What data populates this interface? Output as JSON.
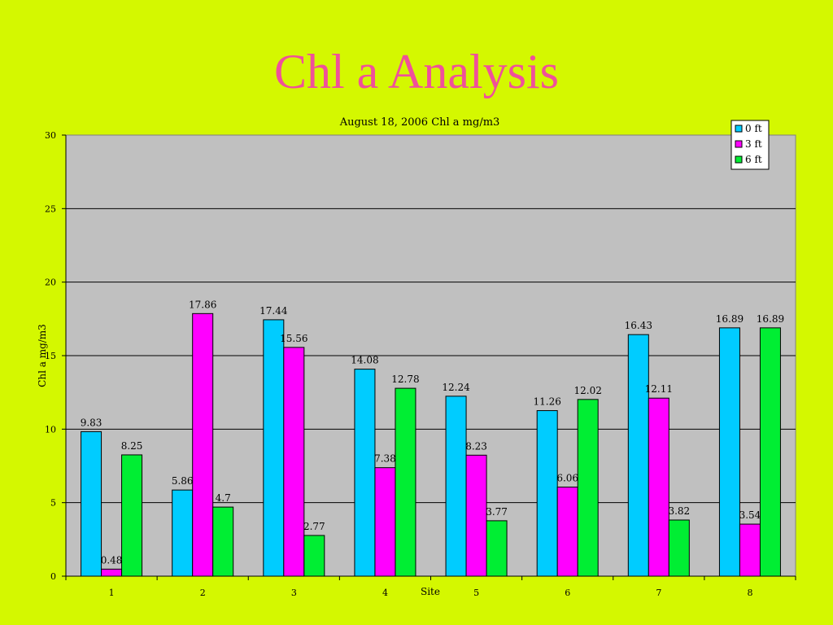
{
  "slide": {
    "title": "Chl a Analysis"
  },
  "chart_data": {
    "type": "bar",
    "title": "August 18, 2006 Chl a mg/m3",
    "xlabel": "Site",
    "ylabel": "Chl a mg/m3",
    "ylim": [
      0,
      30
    ],
    "yticks": [
      0,
      5,
      10,
      15,
      20,
      25,
      30
    ],
    "grid": true,
    "legend_position": "top-right",
    "categories": [
      "1",
      "2",
      "3",
      "4",
      "5",
      "6",
      "7",
      "8"
    ],
    "series": [
      {
        "name": "0 ft",
        "color": "#00ccff",
        "values": [
          9.83,
          5.86,
          17.44,
          14.08,
          12.24,
          11.26,
          16.43,
          16.89
        ]
      },
      {
        "name": "3 ft",
        "color": "#ff00ff",
        "values": [
          0.48,
          17.86,
          15.56,
          7.38,
          8.23,
          6.06,
          12.11,
          3.54
        ]
      },
      {
        "name": "6 ft",
        "color": "#00ee33",
        "values": [
          8.25,
          4.7,
          2.77,
          12.78,
          3.77,
          12.02,
          3.82,
          16.89
        ]
      }
    ],
    "colors": {
      "plot_bg": "#c0c0c0",
      "page_bg": "#d4f800",
      "title": "#f0509a"
    }
  }
}
